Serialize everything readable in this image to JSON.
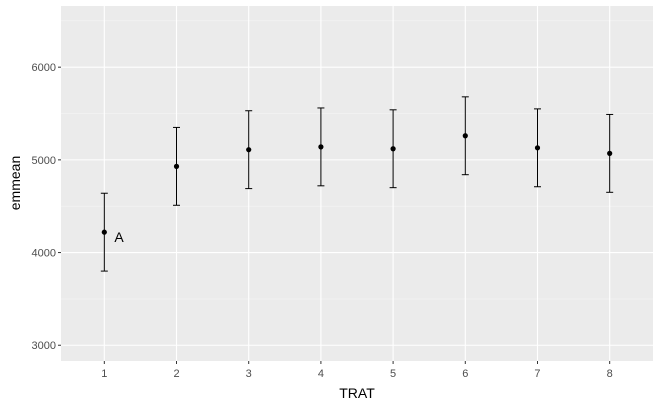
{
  "chart_data": {
    "type": "scatter",
    "xlabel": "TRAT",
    "ylabel": "emmean",
    "x_categories": [
      "1",
      "2",
      "3",
      "4",
      "5",
      "6",
      "7",
      "8"
    ],
    "y_ticks": [
      3000,
      4000,
      5000,
      6000
    ],
    "y_tick_labels": [
      "3000",
      "4000",
      "5000",
      "6000"
    ],
    "ylim": [
      2830,
      6660
    ],
    "grid": true,
    "points": [
      {
        "x": "1",
        "emmean": 4220,
        "lower": 3800,
        "upper": 4640
      },
      {
        "x": "2",
        "emmean": 4930,
        "lower": 4510,
        "upper": 5350
      },
      {
        "x": "3",
        "emmean": 5110,
        "lower": 4690,
        "upper": 5530
      },
      {
        "x": "4",
        "emmean": 5140,
        "lower": 4720,
        "upper": 5560
      },
      {
        "x": "5",
        "emmean": 5120,
        "lower": 4700,
        "upper": 5540
      },
      {
        "x": "6",
        "emmean": 5260,
        "lower": 4840,
        "upper": 5680
      },
      {
        "x": "7",
        "emmean": 5130,
        "lower": 4710,
        "upper": 5550
      },
      {
        "x": "8",
        "emmean": 5070,
        "lower": 4650,
        "upper": 5490
      }
    ],
    "annotations": [
      {
        "x": "1",
        "y": 4170,
        "text": "A"
      }
    ],
    "colors": {
      "panel": "#ebebeb",
      "grid_major": "#ffffff",
      "grid_minor": "#f5f5f5",
      "marks": "#000000",
      "tick_text": "#4d4d4d"
    }
  }
}
